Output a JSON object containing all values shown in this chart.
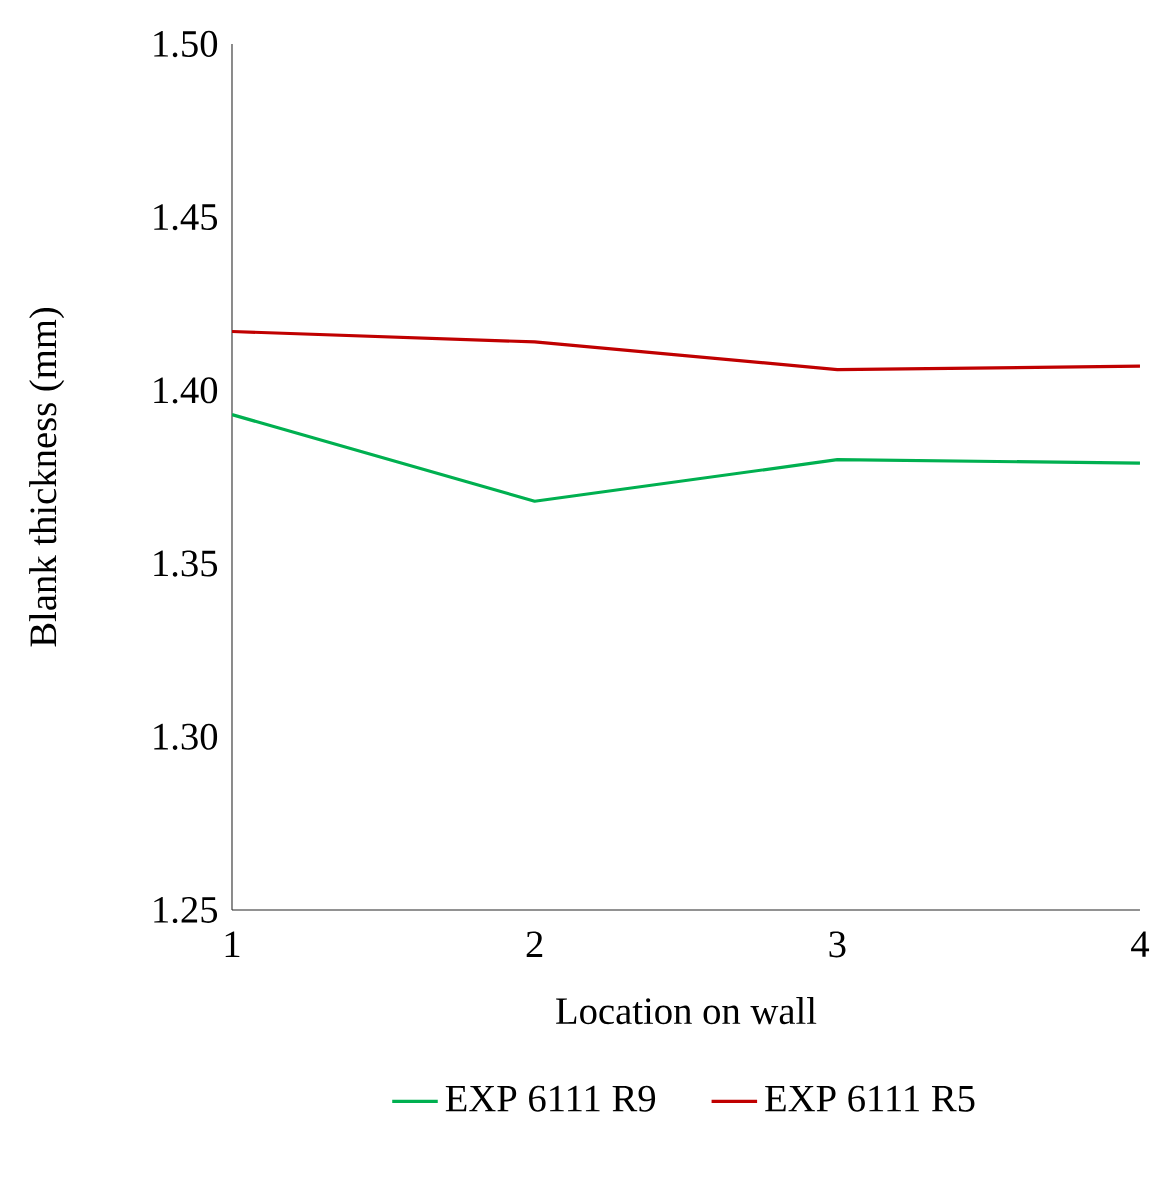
{
  "chart_data": {
    "type": "line",
    "xlabel": "Location on wall",
    "ylabel": "Blank thickness (mm)",
    "x": [
      1,
      2,
      3,
      4
    ],
    "series": [
      {
        "name": "EXP 6111 R9",
        "color": "#00b050",
        "values": [
          1.393,
          1.368,
          1.38,
          1.379
        ]
      },
      {
        "name": "EXP 6111 R5",
        "color": "#c00000",
        "values": [
          1.417,
          1.414,
          1.406,
          1.407
        ]
      }
    ],
    "xlim": [
      1,
      4
    ],
    "xticks": [
      1,
      2,
      3,
      4
    ],
    "ylim": [
      1.25,
      1.5
    ],
    "yticks": [
      1.25,
      {
        "value": 1.3,
        "label": "1.30"
      },
      1.35,
      {
        "value": 1.4,
        "label": "1.40"
      },
      1.45,
      {
        "value": 1.5,
        "label": "1.50"
      }
    ],
    "grid": false,
    "legend": "bottom",
    "marker": "none",
    "line_style": "solid"
  }
}
